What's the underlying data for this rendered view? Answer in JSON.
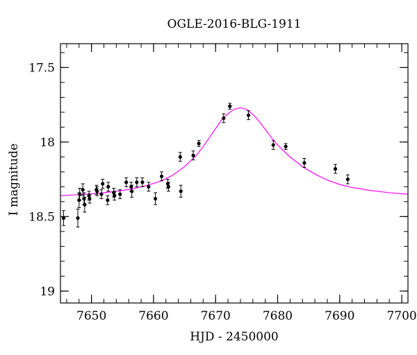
{
  "chart_data": {
    "type": "scatter",
    "title": "OGLE-2016-BLG-1911",
    "xlabel": "HJD - 2450000",
    "ylabel": "I magnitude",
    "xlim": [
      7645,
      7701
    ],
    "ylim": [
      19.08,
      17.34
    ],
    "y_inverted": true,
    "x_ticks": [
      7650,
      7660,
      7670,
      7680,
      7690,
      7700
    ],
    "y_ticks": [
      17.5,
      18,
      18.5,
      19
    ],
    "y_tick_labels": [
      "17.5",
      "18",
      "18.5",
      "19"
    ],
    "x_minor_step": 2,
    "y_minor_step": 0.1,
    "grid": false,
    "colors": {
      "data": "#000000",
      "model": "#ff00ff",
      "axes": "#000000"
    },
    "series": [
      {
        "kind": "points_with_errorbars",
        "points": [
          {
            "x": 7645.5,
            "y": 18.51,
            "err": 0.05
          },
          {
            "x": 7647.8,
            "y": 18.51,
            "err": 0.06
          },
          {
            "x": 7648.0,
            "y": 18.39,
            "err": 0.05
          },
          {
            "x": 7648.1,
            "y": 18.35,
            "err": 0.04
          },
          {
            "x": 7648.6,
            "y": 18.32,
            "err": 0.04
          },
          {
            "x": 7648.8,
            "y": 18.38,
            "err": 0.04
          },
          {
            "x": 7648.9,
            "y": 18.42,
            "err": 0.05
          },
          {
            "x": 7649.6,
            "y": 18.36,
            "err": 0.03
          },
          {
            "x": 7649.7,
            "y": 18.38,
            "err": 0.03
          },
          {
            "x": 7650.8,
            "y": 18.32,
            "err": 0.03
          },
          {
            "x": 7650.9,
            "y": 18.33,
            "err": 0.03
          },
          {
            "x": 7651.6,
            "y": 18.35,
            "err": 0.03
          },
          {
            "x": 7651.8,
            "y": 18.28,
            "err": 0.03
          },
          {
            "x": 7652.6,
            "y": 18.39,
            "err": 0.03
          },
          {
            "x": 7652.7,
            "y": 18.3,
            "err": 0.03
          },
          {
            "x": 7653.6,
            "y": 18.34,
            "err": 0.03
          },
          {
            "x": 7653.7,
            "y": 18.36,
            "err": 0.03
          },
          {
            "x": 7654.6,
            "y": 18.35,
            "err": 0.03
          },
          {
            "x": 7655.6,
            "y": 18.27,
            "err": 0.03
          },
          {
            "x": 7656.4,
            "y": 18.3,
            "err": 0.03
          },
          {
            "x": 7656.5,
            "y": 18.33,
            "err": 0.04
          },
          {
            "x": 7657.3,
            "y": 18.27,
            "err": 0.03
          },
          {
            "x": 7658.2,
            "y": 18.27,
            "err": 0.03
          },
          {
            "x": 7659.2,
            "y": 18.3,
            "err": 0.03
          },
          {
            "x": 7660.3,
            "y": 18.38,
            "err": 0.04
          },
          {
            "x": 7661.3,
            "y": 18.23,
            "err": 0.03
          },
          {
            "x": 7662.3,
            "y": 18.28,
            "err": 0.03
          },
          {
            "x": 7662.4,
            "y": 18.3,
            "err": 0.03
          },
          {
            "x": 7664.3,
            "y": 18.1,
            "err": 0.03
          },
          {
            "x": 7664.4,
            "y": 18.33,
            "err": 0.04
          },
          {
            "x": 7666.4,
            "y": 18.09,
            "err": 0.03
          },
          {
            "x": 7667.3,
            "y": 18.01,
            "err": 0.02
          },
          {
            "x": 7671.3,
            "y": 17.84,
            "err": 0.03
          },
          {
            "x": 7672.3,
            "y": 17.76,
            "err": 0.02
          },
          {
            "x": 7675.3,
            "y": 17.82,
            "err": 0.03
          },
          {
            "x": 7679.3,
            "y": 18.02,
            "err": 0.03
          },
          {
            "x": 7681.3,
            "y": 18.03,
            "err": 0.02
          },
          {
            "x": 7684.3,
            "y": 18.14,
            "err": 0.03
          },
          {
            "x": 7689.3,
            "y": 18.18,
            "err": 0.03
          },
          {
            "x": 7691.3,
            "y": 18.25,
            "err": 0.03
          }
        ]
      },
      {
        "kind": "model_curve",
        "x": [
          7645,
          7647,
          7649,
          7651,
          7653,
          7655,
          7657,
          7659,
          7661,
          7663,
          7665,
          7667,
          7668,
          7669,
          7670,
          7671,
          7672,
          7673,
          7674,
          7675,
          7676,
          7677,
          7678,
          7679,
          7680,
          7682,
          7684,
          7686,
          7688,
          7690,
          7692,
          7695,
          7698,
          7701
        ],
        "y": [
          18.36,
          18.355,
          18.35,
          18.345,
          18.335,
          18.325,
          18.31,
          18.29,
          18.265,
          18.225,
          18.165,
          18.085,
          18.03,
          17.97,
          17.91,
          17.85,
          17.81,
          17.78,
          17.77,
          17.78,
          17.815,
          17.86,
          17.915,
          17.97,
          18.02,
          18.1,
          18.165,
          18.215,
          18.255,
          18.285,
          18.305,
          18.325,
          18.34,
          18.35
        ]
      }
    ]
  }
}
